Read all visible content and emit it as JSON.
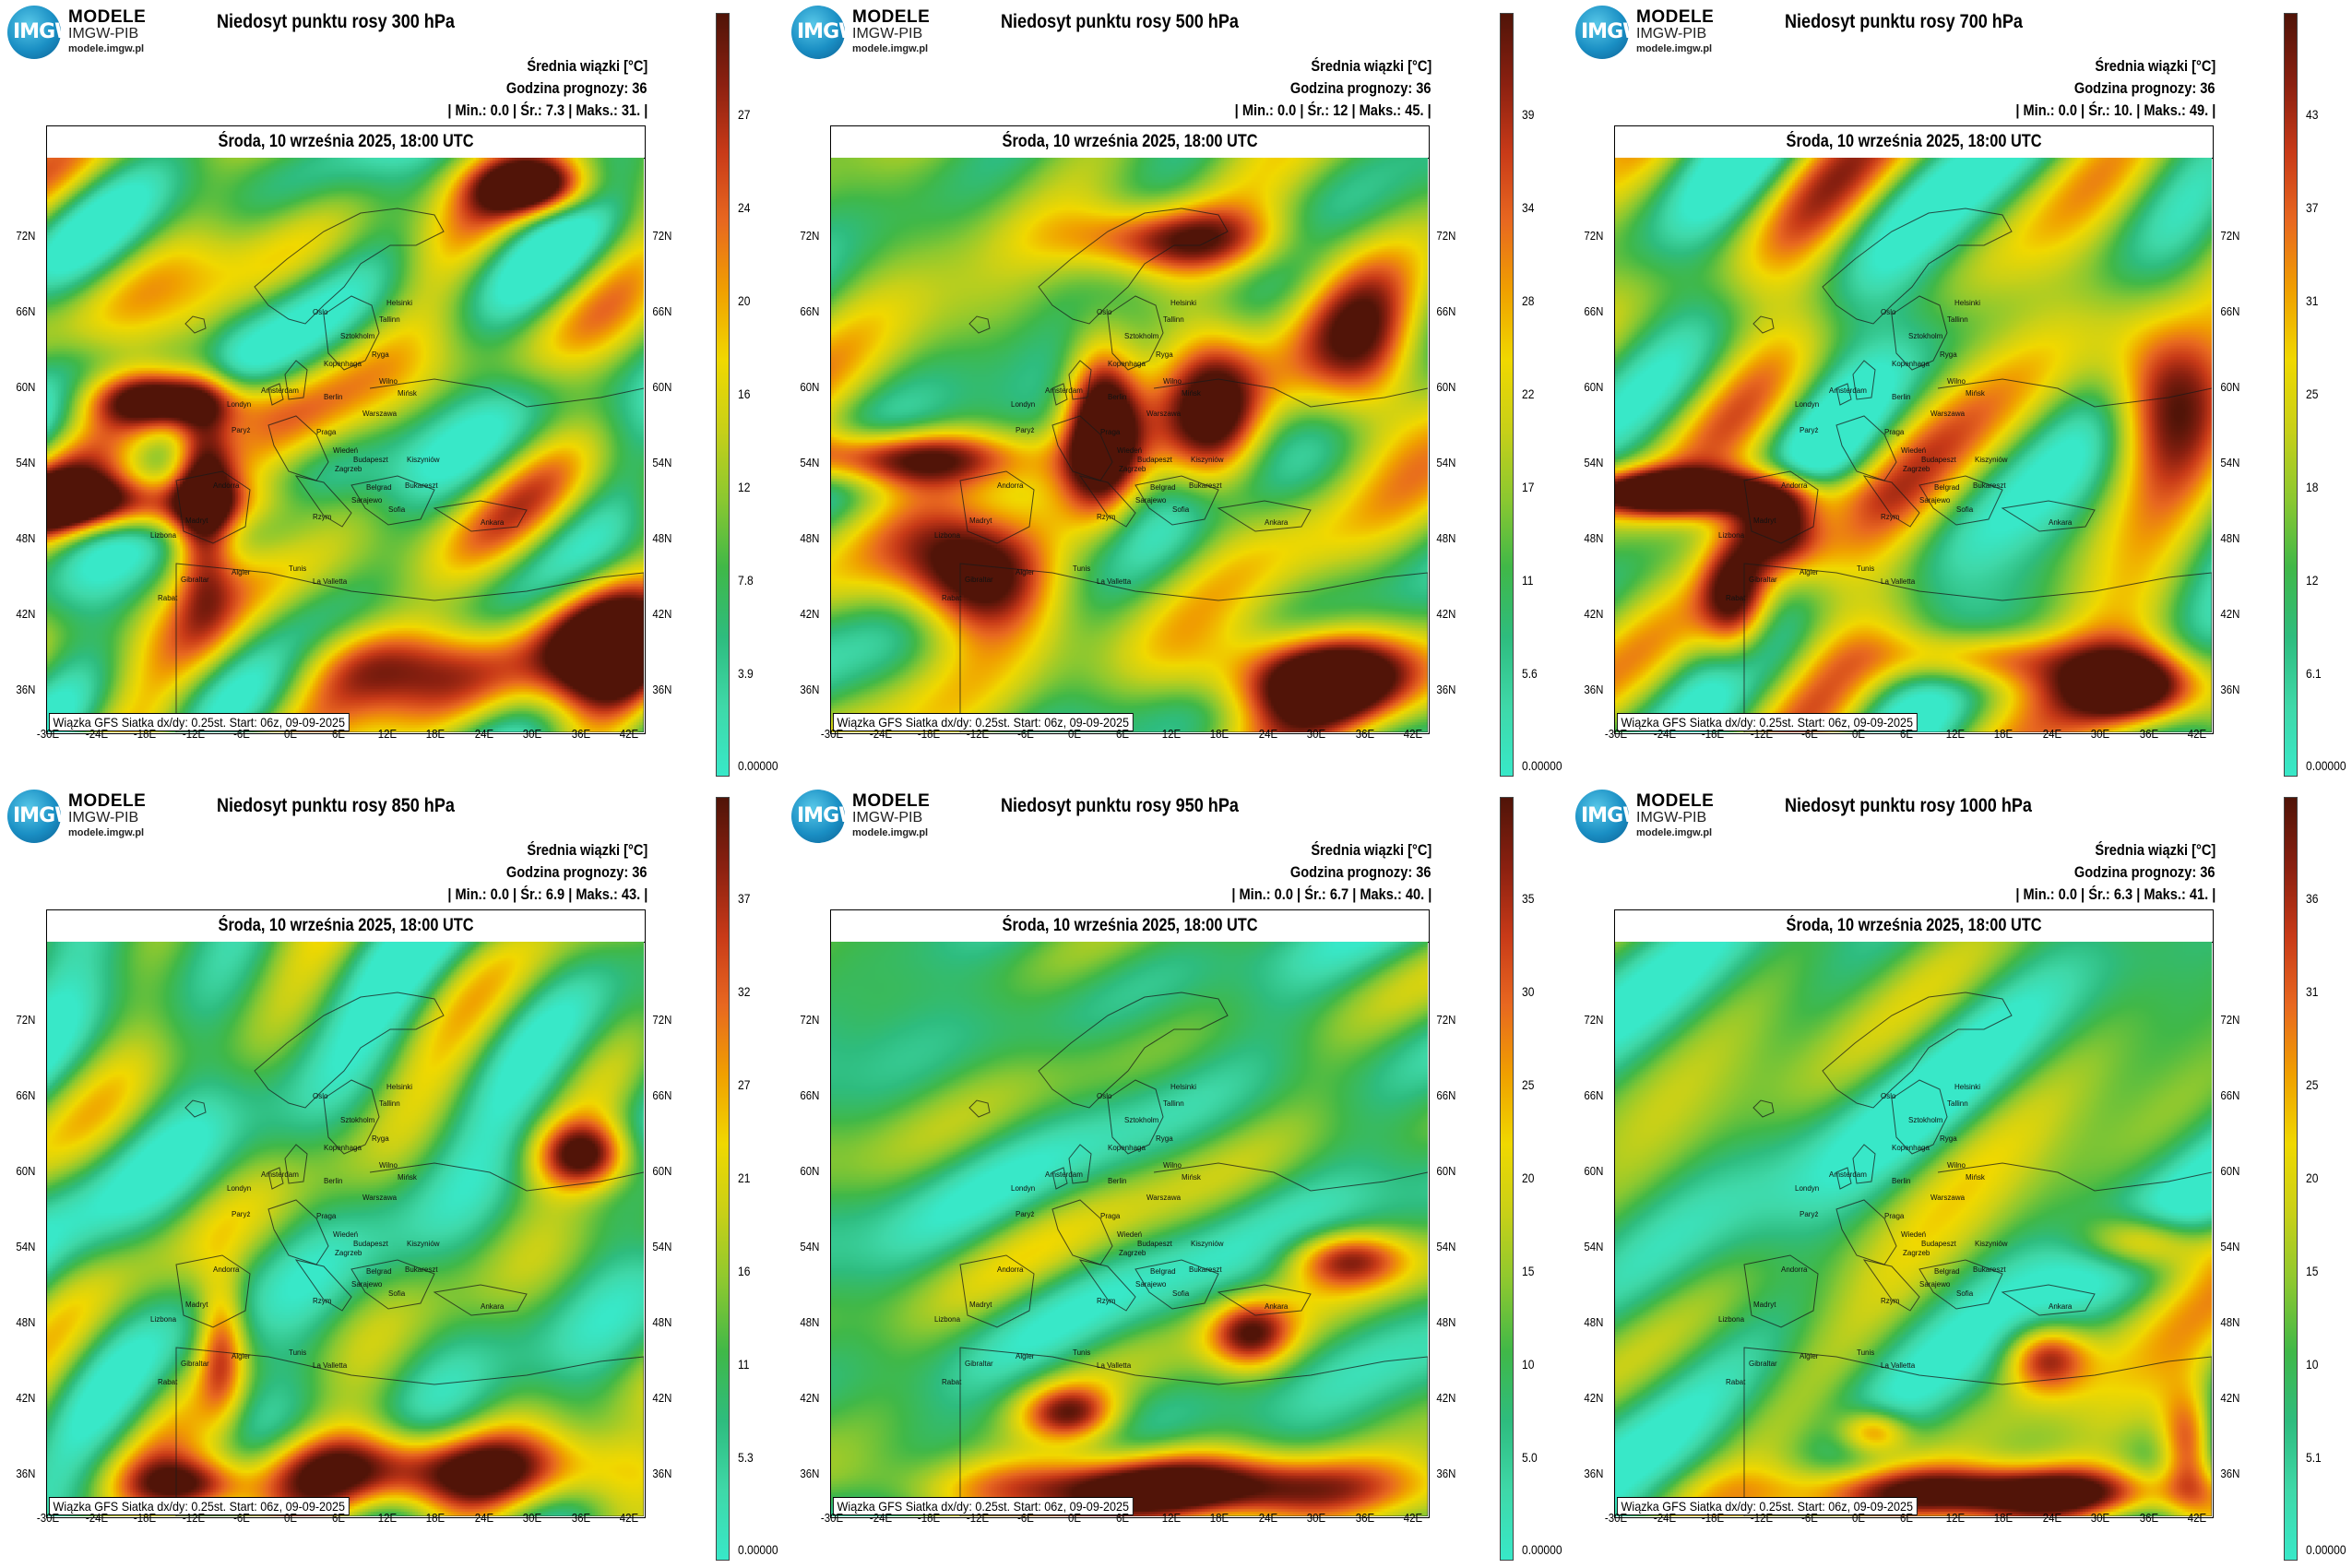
{
  "logo": {
    "mark": "IMGW",
    "line1": "MODELE",
    "line2": "IMGW-PIB",
    "line3": "modele.imgw.pl"
  },
  "common": {
    "quantity": "Średnia wiązki [°C]",
    "forecast_hour": "Godzina prognozy: 36",
    "valid_time": "Środa, 10 września 2025, 18:00 UTC",
    "footer": "Wiązka GFS Siatka dx/dy: 0.25st. Start: 06z, 09-09-2025",
    "lat_labels": [
      "72N",
      "66N",
      "60N",
      "54N",
      "48N",
      "42N",
      "36N"
    ],
    "lon_labels": [
      "-30E",
      "-24E",
      "-18E",
      "-12E",
      "-6E",
      "0E",
      "6E",
      "12E",
      "18E",
      "24E",
      "30E",
      "36E",
      "42E"
    ]
  },
  "colors": {
    "scale": [
      "#38e8c8",
      "#3fd8a8",
      "#2ebc7e",
      "#40b848",
      "#8cc830",
      "#c8d018",
      "#f0d800",
      "#f0a000",
      "#e86820",
      "#c83a18",
      "#8a2010",
      "#501408"
    ]
  },
  "panels": [
    {
      "title": "Niedosyt punktu rosy 300 hPa",
      "stats": "| Min.:    0.0 | Śr.:    7.3 | Maks.:    31. |",
      "min": 0.0,
      "mean": 7.3,
      "max": 31,
      "colorbar_ticks": [
        "27",
        "24",
        "20",
        "16",
        "12",
        "7.8",
        "3.9",
        "0.00000"
      ]
    },
    {
      "title": "Niedosyt punktu rosy 500 hPa",
      "stats": "| Min.:    0.0 | Śr.:    12 | Maks.:    45. |",
      "min": 0.0,
      "mean": 12,
      "max": 45,
      "colorbar_ticks": [
        "39",
        "34",
        "28",
        "22",
        "17",
        "11",
        "5.6",
        "0.00000"
      ]
    },
    {
      "title": "Niedosyt punktu rosy 700 hPa",
      "stats": "| Min.:    0.0 | Śr.:    10. | Maks.:    49. |",
      "min": 0.0,
      "mean": 10,
      "max": 49,
      "colorbar_ticks": [
        "43",
        "37",
        "31",
        "25",
        "18",
        "12",
        "6.1",
        "0.00000"
      ]
    },
    {
      "title": "Niedosyt punktu rosy 850 hPa",
      "stats": "| Min.:    0.0 | Śr.:    6.9 | Maks.:    43. |",
      "min": 0.0,
      "mean": 6.9,
      "max": 43,
      "colorbar_ticks": [
        "37",
        "32",
        "27",
        "21",
        "16",
        "11",
        "5.3",
        "0.00000"
      ]
    },
    {
      "title": "Niedosyt punktu rosy 950 hPa",
      "stats": "| Min.:    0.0 | Śr.:    6.7 | Maks.:    40. |",
      "min": 0.0,
      "mean": 6.7,
      "max": 40,
      "colorbar_ticks": [
        "35",
        "30",
        "25",
        "20",
        "15",
        "10",
        "5.0",
        "0.00000"
      ]
    },
    {
      "title": "Niedosyt punktu rosy 1000 hPa",
      "stats": "| Min.:    0.0 | Śr.:    6.3 | Maks.:    41. |",
      "min": 0.0,
      "mean": 6.3,
      "max": 41,
      "colorbar_ticks": [
        "36",
        "31",
        "25",
        "20",
        "15",
        "10",
        "5.1",
        "0.00000"
      ]
    }
  ]
}
